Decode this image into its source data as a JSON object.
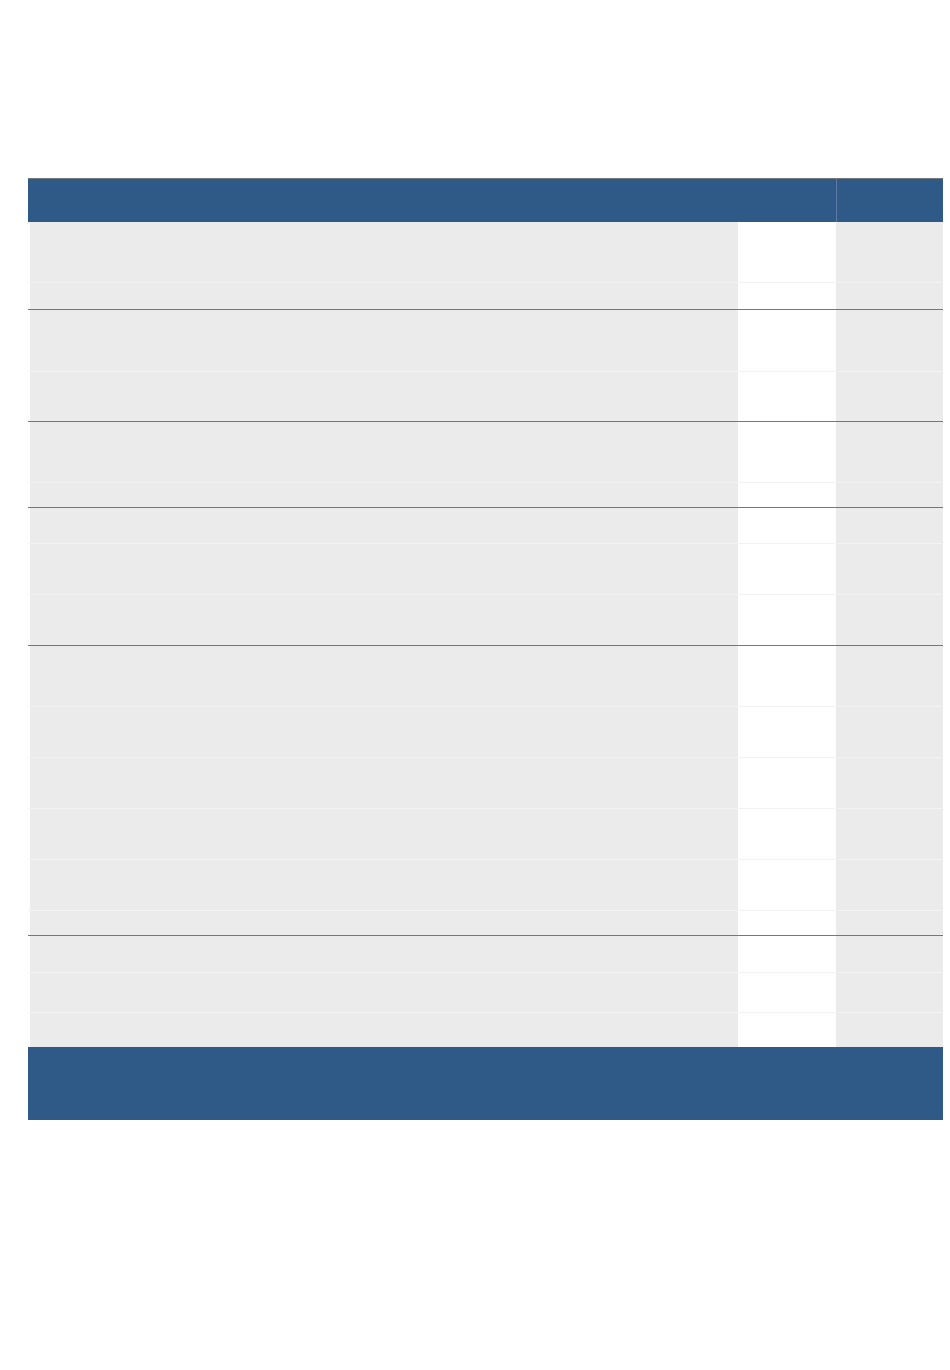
{
  "table": {
    "header_color": "#2f5986",
    "row_color": "#ebebeb",
    "groups": [
      {
        "rows": [
          60,
          27
        ]
      },
      {
        "rows": [
          62,
          50
        ]
      },
      {
        "rows": [
          61,
          25
        ]
      },
      {
        "rows": [
          36,
          51,
          51
        ]
      },
      {
        "rows": [
          61,
          51,
          51,
          51,
          51,
          25
        ]
      },
      {
        "rows": [
          37,
          40,
          35
        ]
      }
    ]
  }
}
